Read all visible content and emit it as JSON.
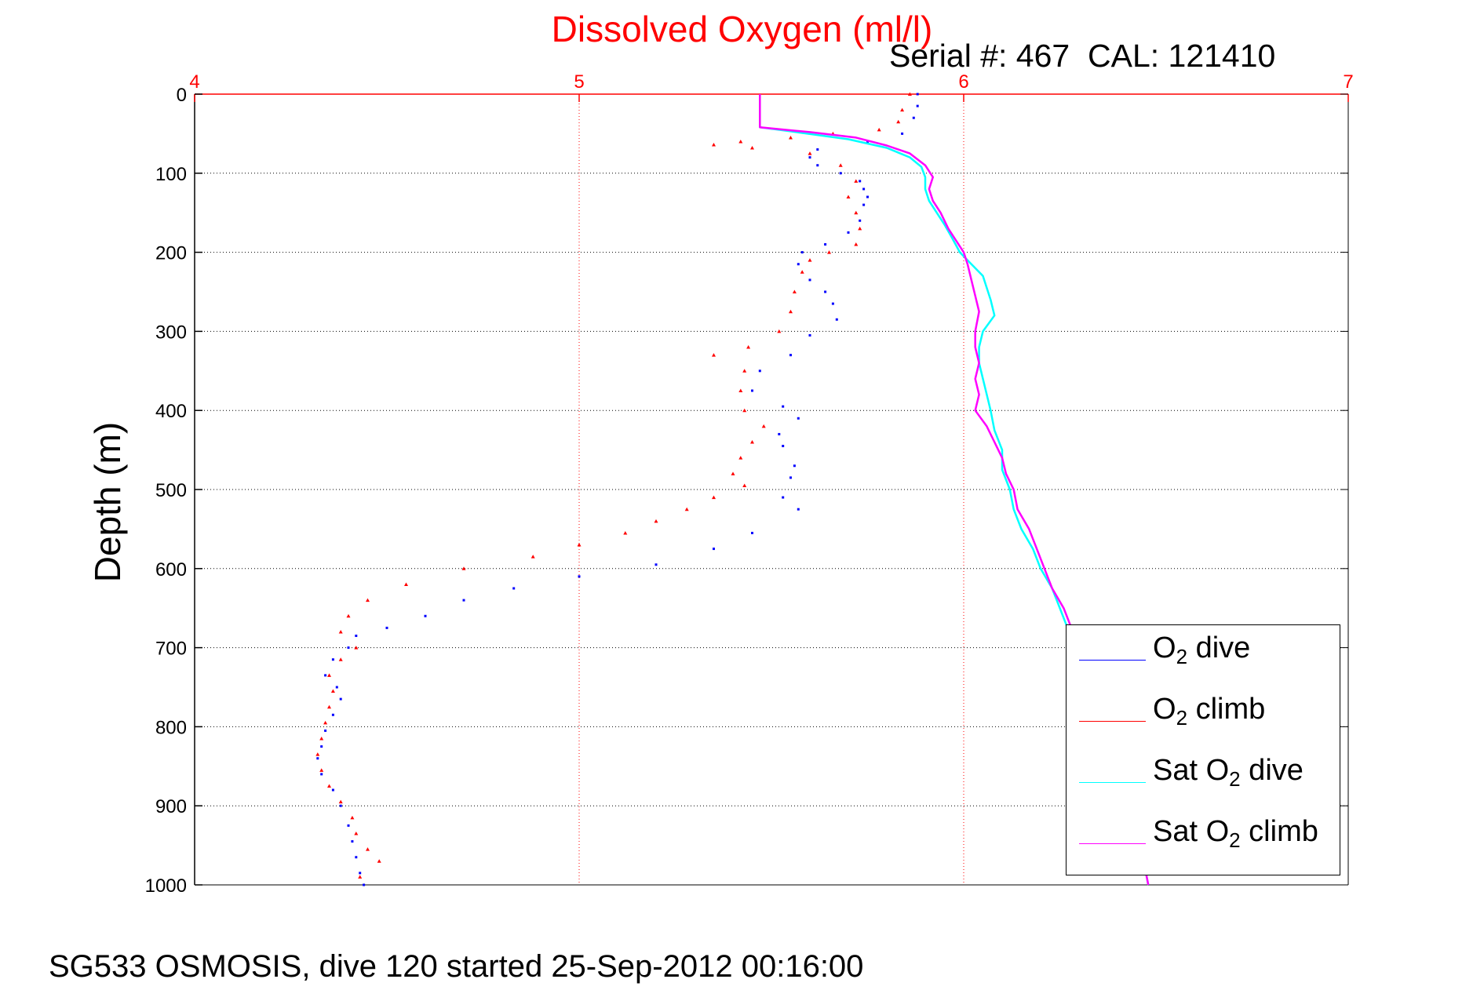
{
  "title": "Dissolved Oxygen (ml/l)",
  "serial_text": "Serial #: 467  CAL: 121410",
  "footer_text": "SG533 OSMOSIS, dive 120 started 25-Sep-2012 00:16:00",
  "legend": {
    "o2_dive_base": "O",
    "o2_dive_sub": "2",
    "o2_dive_rest": " dive",
    "o2_climb_base": "O",
    "o2_climb_sub": "2",
    "o2_climb_rest": " climb",
    "sat_dive_base": "Sat O",
    "sat_dive_sub": "2",
    "sat_dive_rest": " dive",
    "sat_climb_base": "Sat O",
    "sat_climb_sub": "2",
    "sat_climb_rest": " climb"
  },
  "chart_data": {
    "type": "scatter",
    "title": "Dissolved Oxygen (ml/l)",
    "xlabel": "",
    "ylabel": "Depth (m)",
    "xlim": [
      4,
      7
    ],
    "ylim": [
      0,
      1000
    ],
    "y_reversed": true,
    "x_axis_position": "top",
    "xticks": [
      4,
      5,
      6,
      7
    ],
    "yticks": [
      0,
      100,
      200,
      300,
      400,
      500,
      600,
      700,
      800,
      900,
      1000
    ],
    "xtick_color": "#ff0000",
    "grid": true,
    "legend_position": "bottom-right",
    "series": [
      {
        "name": "O2 dive",
        "color": "#0000ff",
        "style": "dots",
        "points": [
          [
            5.88,
            0
          ],
          [
            5.88,
            15
          ],
          [
            5.87,
            30
          ],
          [
            5.84,
            50
          ],
          [
            5.75,
            60
          ],
          [
            5.62,
            70
          ],
          [
            5.6,
            80
          ],
          [
            5.62,
            90
          ],
          [
            5.68,
            100
          ],
          [
            5.73,
            110
          ],
          [
            5.74,
            120
          ],
          [
            5.75,
            130
          ],
          [
            5.74,
            140
          ],
          [
            5.73,
            160
          ],
          [
            5.7,
            175
          ],
          [
            5.64,
            190
          ],
          [
            5.58,
            200
          ],
          [
            5.57,
            215
          ],
          [
            5.6,
            235
          ],
          [
            5.64,
            250
          ],
          [
            5.66,
            265
          ],
          [
            5.67,
            285
          ],
          [
            5.6,
            305
          ],
          [
            5.55,
            330
          ],
          [
            5.47,
            350
          ],
          [
            5.45,
            375
          ],
          [
            5.53,
            395
          ],
          [
            5.57,
            410
          ],
          [
            5.52,
            430
          ],
          [
            5.53,
            445
          ],
          [
            5.56,
            470
          ],
          [
            5.55,
            485
          ],
          [
            5.53,
            510
          ],
          [
            5.57,
            525
          ],
          [
            5.45,
            555
          ],
          [
            5.35,
            575
          ],
          [
            5.2,
            595
          ],
          [
            5.0,
            610
          ],
          [
            4.83,
            625
          ],
          [
            4.7,
            640
          ],
          [
            4.6,
            660
          ],
          [
            4.5,
            675
          ],
          [
            4.42,
            685
          ],
          [
            4.4,
            700
          ],
          [
            4.36,
            715
          ],
          [
            4.34,
            735
          ],
          [
            4.37,
            750
          ],
          [
            4.38,
            765
          ],
          [
            4.36,
            785
          ],
          [
            4.34,
            805
          ],
          [
            4.33,
            825
          ],
          [
            4.32,
            840
          ],
          [
            4.33,
            860
          ],
          [
            4.36,
            880
          ],
          [
            4.38,
            900
          ],
          [
            4.4,
            925
          ],
          [
            4.41,
            945
          ],
          [
            4.42,
            965
          ],
          [
            4.43,
            985
          ],
          [
            4.44,
            1000
          ]
        ]
      },
      {
        "name": "O2 climb",
        "color": "#ff0000",
        "style": "triangles",
        "points": [
          [
            5.86,
            0
          ],
          [
            5.84,
            20
          ],
          [
            5.83,
            35
          ],
          [
            5.78,
            45
          ],
          [
            5.66,
            50
          ],
          [
            5.55,
            55
          ],
          [
            5.42,
            60
          ],
          [
            5.35,
            64
          ],
          [
            5.45,
            68
          ],
          [
            5.6,
            75
          ],
          [
            5.68,
            90
          ],
          [
            5.72,
            110
          ],
          [
            5.7,
            130
          ],
          [
            5.72,
            150
          ],
          [
            5.73,
            170
          ],
          [
            5.72,
            190
          ],
          [
            5.65,
            200
          ],
          [
            5.6,
            210
          ],
          [
            5.58,
            225
          ],
          [
            5.56,
            250
          ],
          [
            5.55,
            275
          ],
          [
            5.52,
            300
          ],
          [
            5.44,
            320
          ],
          [
            5.35,
            330
          ],
          [
            5.43,
            350
          ],
          [
            5.42,
            375
          ],
          [
            5.43,
            400
          ],
          [
            5.48,
            420
          ],
          [
            5.45,
            440
          ],
          [
            5.42,
            460
          ],
          [
            5.4,
            480
          ],
          [
            5.43,
            495
          ],
          [
            5.35,
            510
          ],
          [
            5.28,
            525
          ],
          [
            5.2,
            540
          ],
          [
            5.12,
            555
          ],
          [
            5.0,
            570
          ],
          [
            4.88,
            585
          ],
          [
            4.7,
            600
          ],
          [
            4.55,
            620
          ],
          [
            4.45,
            640
          ],
          [
            4.4,
            660
          ],
          [
            4.38,
            680
          ],
          [
            4.42,
            700
          ],
          [
            4.38,
            715
          ],
          [
            4.35,
            735
          ],
          [
            4.36,
            755
          ],
          [
            4.35,
            775
          ],
          [
            4.34,
            795
          ],
          [
            4.33,
            815
          ],
          [
            4.32,
            835
          ],
          [
            4.33,
            855
          ],
          [
            4.35,
            875
          ],
          [
            4.38,
            895
          ],
          [
            4.41,
            915
          ],
          [
            4.42,
            935
          ],
          [
            4.45,
            955
          ],
          [
            4.48,
            970
          ],
          [
            4.43,
            990
          ]
        ]
      },
      {
        "name": "Sat O2 dive",
        "color": "#00ffff",
        "style": "line",
        "points": [
          [
            5.47,
            0
          ],
          [
            5.47,
            25
          ],
          [
            5.47,
            42
          ],
          [
            5.55,
            47
          ],
          [
            5.7,
            57
          ],
          [
            5.8,
            68
          ],
          [
            5.86,
            80
          ],
          [
            5.89,
            92
          ],
          [
            5.9,
            105
          ],
          [
            5.9,
            120
          ],
          [
            5.91,
            135
          ],
          [
            5.93,
            150
          ],
          [
            5.95,
            165
          ],
          [
            5.97,
            182
          ],
          [
            5.99,
            200
          ],
          [
            6.02,
            215
          ],
          [
            6.05,
            230
          ],
          [
            6.06,
            245
          ],
          [
            6.07,
            260
          ],
          [
            6.08,
            280
          ],
          [
            6.05,
            300
          ],
          [
            6.04,
            320
          ],
          [
            6.04,
            340
          ],
          [
            6.05,
            360
          ],
          [
            6.06,
            380
          ],
          [
            6.07,
            400
          ],
          [
            6.08,
            425
          ],
          [
            6.1,
            450
          ],
          [
            6.1,
            475
          ],
          [
            6.12,
            500
          ],
          [
            6.13,
            525
          ],
          [
            6.15,
            550
          ],
          [
            6.18,
            575
          ],
          [
            6.2,
            600
          ],
          [
            6.23,
            625
          ],
          [
            6.25,
            650
          ],
          [
            6.27,
            675
          ],
          [
            6.29,
            700
          ],
          [
            6.32,
            725
          ],
          [
            6.35,
            750
          ],
          [
            6.37,
            775
          ],
          [
            6.39,
            800
          ],
          [
            6.4,
            825
          ],
          [
            6.41,
            850
          ],
          [
            6.42,
            875
          ],
          [
            6.44,
            900
          ],
          [
            6.45,
            925
          ],
          [
            6.46,
            950
          ],
          [
            6.47,
            975
          ],
          [
            6.48,
            1000
          ]
        ]
      },
      {
        "name": "Sat O2 climb",
        "color": "#ff00ff",
        "style": "line",
        "points": [
          [
            5.47,
            0
          ],
          [
            5.47,
            25
          ],
          [
            5.47,
            42
          ],
          [
            5.6,
            48
          ],
          [
            5.72,
            55
          ],
          [
            5.8,
            65
          ],
          [
            5.86,
            75
          ],
          [
            5.9,
            90
          ],
          [
            5.92,
            105
          ],
          [
            5.91,
            120
          ],
          [
            5.92,
            135
          ],
          [
            5.94,
            150
          ],
          [
            5.96,
            170
          ],
          [
            5.98,
            185
          ],
          [
            6.0,
            200
          ],
          [
            6.01,
            215
          ],
          [
            6.02,
            235
          ],
          [
            6.03,
            255
          ],
          [
            6.04,
            275
          ],
          [
            6.03,
            300
          ],
          [
            6.03,
            320
          ],
          [
            6.04,
            340
          ],
          [
            6.03,
            360
          ],
          [
            6.04,
            380
          ],
          [
            6.03,
            400
          ],
          [
            6.06,
            420
          ],
          [
            6.08,
            440
          ],
          [
            6.1,
            460
          ],
          [
            6.11,
            480
          ],
          [
            6.13,
            500
          ],
          [
            6.14,
            525
          ],
          [
            6.17,
            550
          ],
          [
            6.19,
            575
          ],
          [
            6.21,
            600
          ],
          [
            6.23,
            625
          ],
          [
            6.26,
            650
          ],
          [
            6.28,
            675
          ],
          [
            6.3,
            700
          ],
          [
            6.33,
            725
          ],
          [
            6.36,
            750
          ],
          [
            6.38,
            775
          ],
          [
            6.4,
            800
          ],
          [
            6.41,
            825
          ],
          [
            6.42,
            850
          ],
          [
            6.43,
            875
          ],
          [
            6.44,
            900
          ],
          [
            6.45,
            925
          ],
          [
            6.46,
            950
          ],
          [
            6.47,
            975
          ],
          [
            6.48,
            1000
          ]
        ]
      }
    ]
  }
}
